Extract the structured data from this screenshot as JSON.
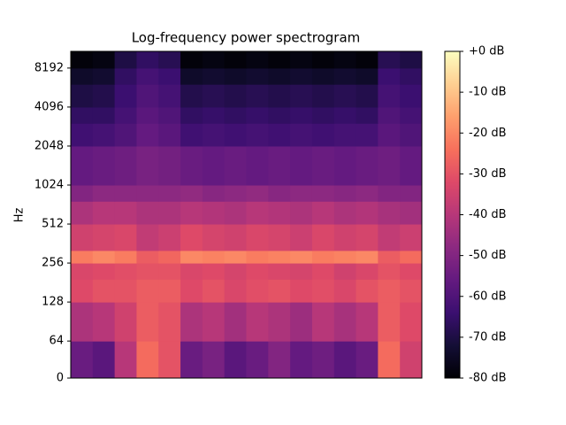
{
  "chart_data": {
    "type": "heatmap",
    "title": "Log-frequency power spectrogram",
    "ylabel": "Hz",
    "colormap": "magma",
    "yscale": "symlog",
    "linthresh": 64,
    "ylim": [
      0,
      11025
    ],
    "yticks": [
      0,
      64,
      128,
      256,
      512,
      1024,
      2048,
      4096,
      8192
    ],
    "yedges": [
      0,
      64,
      128,
      192,
      256,
      320,
      512,
      768,
      1024,
      2048,
      3072,
      4096,
      6144,
      8192,
      11025
    ],
    "zlim": [
      -80,
      0
    ],
    "colorbar_ticks": [
      {
        "value": 0,
        "label": "+0 dB"
      },
      {
        "value": -10,
        "label": "-10 dB"
      },
      {
        "value": -20,
        "label": "-20 dB"
      },
      {
        "value": -30,
        "label": "-30 dB"
      },
      {
        "value": -40,
        "label": "-40 dB"
      },
      {
        "value": -50,
        "label": "-50 dB"
      },
      {
        "value": -60,
        "label": "-60 dB"
      },
      {
        "value": -70,
        "label": "-70 dB"
      },
      {
        "value": -80,
        "label": "-80 dB"
      }
    ],
    "z": [
      [
        -55,
        -58,
        -40,
        -25,
        -30,
        -55,
        -52,
        -58,
        -55,
        -50,
        -56,
        -54,
        -58,
        -55,
        -25,
        -35
      ],
      [
        -42,
        -40,
        -35,
        -28,
        -30,
        -42,
        -40,
        -44,
        -40,
        -42,
        -45,
        -40,
        -43,
        -40,
        -28,
        -32
      ],
      [
        -32,
        -30,
        -30,
        -28,
        -28,
        -32,
        -30,
        -33,
        -31,
        -30,
        -32,
        -31,
        -33,
        -30,
        -28,
        -30
      ],
      [
        -33,
        -32,
        -31,
        -30,
        -30,
        -33,
        -32,
        -34,
        -32,
        -33,
        -34,
        -32,
        -35,
        -33,
        -30,
        -32
      ],
      [
        -22,
        -20,
        -22,
        -28,
        -26,
        -20,
        -21,
        -20,
        -22,
        -21,
        -20,
        -22,
        -21,
        -20,
        -28,
        -25
      ],
      [
        -35,
        -34,
        -33,
        -38,
        -36,
        -32,
        -34,
        -35,
        -33,
        -34,
        -36,
        -33,
        -35,
        -34,
        -38,
        -36
      ],
      [
        -42,
        -40,
        -40,
        -42,
        -42,
        -40,
        -41,
        -42,
        -40,
        -41,
        -42,
        -40,
        -42,
        -41,
        -43,
        -44
      ],
      [
        -50,
        -48,
        -48,
        -48,
        -48,
        -47,
        -49,
        -48,
        -47,
        -49,
        -48,
        -48,
        -49,
        -48,
        -50,
        -50
      ],
      [
        -56,
        -55,
        -54,
        -52,
        -53,
        -55,
        -56,
        -55,
        -56,
        -55,
        -56,
        -55,
        -56,
        -55,
        -54,
        -56
      ],
      [
        -63,
        -62,
        -60,
        -56,
        -58,
        -63,
        -62,
        -63,
        -62,
        -63,
        -62,
        -63,
        -62,
        -62,
        -58,
        -60
      ],
      [
        -66,
        -66,
        -62,
        -58,
        -60,
        -66,
        -65,
        -66,
        -65,
        -66,
        -65,
        -66,
        -65,
        -66,
        -60,
        -62
      ],
      [
        -70,
        -69,
        -64,
        -60,
        -62,
        -69,
        -68,
        -69,
        -68,
        -69,
        -68,
        -69,
        -68,
        -69,
        -62,
        -64
      ],
      [
        -74,
        -73,
        -66,
        -62,
        -64,
        -74,
        -73,
        -74,
        -73,
        -74,
        -73,
        -74,
        -73,
        -74,
        -64,
        -66
      ],
      [
        -79,
        -78,
        -70,
        -66,
        -68,
        -79,
        -78,
        -79,
        -78,
        -79,
        -78,
        -79,
        -78,
        -79,
        -68,
        -70
      ]
    ]
  }
}
